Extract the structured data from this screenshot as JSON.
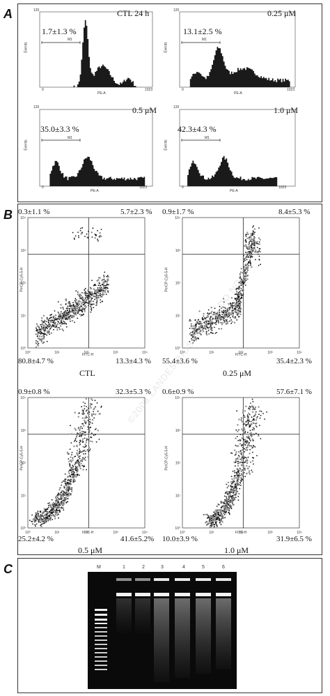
{
  "panels": {
    "a": "A",
    "b": "B",
    "c": "C"
  },
  "histograms": [
    {
      "title": "CTL 24 h",
      "pct": "1.7±1.3 %",
      "ytop": "120",
      "ylabel": "Events",
      "xlabel": "PE-A",
      "xmin": "0",
      "xmax": "1023",
      "marker": "M1"
    },
    {
      "title": "0.25 μM",
      "pct": "13.1±2.5 %",
      "ytop": "120",
      "ylabel": "Events",
      "xlabel": "PE-A",
      "xmin": "0",
      "xmax": "1023",
      "marker": "M1"
    },
    {
      "title": "0.5 μM",
      "pct": "35.0±3.3 %",
      "ytop": "120",
      "ylabel": "Events",
      "xlabel": "PE-A",
      "xmin": "0",
      "xmax": "1023",
      "marker": "M1"
    },
    {
      "title": "1.0 μM",
      "pct": "42.3±4.3 %",
      "ytop": "120",
      "ylabel": "Events",
      "xlabel": "PE-A",
      "xmin": "0",
      "xmax": "1023",
      "marker": "M1"
    }
  ],
  "scatters": [
    {
      "caption": "CTL",
      "ul": "0.3±1.1 %",
      "ur": "5.7±2.3 %",
      "ll": "80.8±4.7 %",
      "lr": "13.3±4.3 %",
      "ylabel": "PerCP-Cy5-5-H",
      "xlabel": "FITC-H"
    },
    {
      "caption": "0.25 μM",
      "ul": "0.9±1.7 %",
      "ur": "8.4±5.3 %",
      "ll": "55.4±3.6 %",
      "lr": "35.4±2.3 %",
      "ylabel": "PerCP-Cy5-5-H",
      "xlabel": "FITC-H"
    },
    {
      "caption": "0.5 μM",
      "ul": "0.9±0.8 %",
      "ur": "32.3±5.3 %",
      "ll": "25.2±4.2 %",
      "lr": "41.6±5.2%",
      "ylabel": "PerCP-Cy5-5-H",
      "xlabel": "FITC-H"
    },
    {
      "caption": "1.0 μM",
      "ul": "0.6±0.9 %",
      "ur": "57.6±7.1 %",
      "ll": "10.0±3.9 %",
      "lr": "31.9±6.5 %",
      "ylabel": "PerCP-Cy5-5-H",
      "xlabel": "FITC-H"
    }
  ],
  "scatter_ticks": [
    "10⁰",
    "10¹",
    "10²",
    "10³",
    "10⁴"
  ],
  "gel": {
    "lanes": [
      "M",
      "1",
      "2",
      "3",
      "4",
      "5",
      "6"
    ]
  },
  "watermark": "©2008 LANDES BIOSCIENCE. DO NOT"
}
